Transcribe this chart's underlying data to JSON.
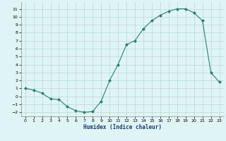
{
  "x": [
    0,
    1,
    2,
    3,
    4,
    5,
    6,
    7,
    8,
    9,
    10,
    11,
    12,
    13,
    14,
    15,
    16,
    17,
    18,
    19,
    20,
    21,
    22,
    23
  ],
  "y": [
    1,
    0.8,
    0.4,
    -0.3,
    -0.4,
    -1.3,
    -1.8,
    -2.0,
    -1.9,
    -0.6,
    2.0,
    4.0,
    6.5,
    7.0,
    8.5,
    9.5,
    10.2,
    10.7,
    11.0,
    11.0,
    10.5,
    9.5,
    3.0,
    1.8
  ],
  "xlabel": "Humidex (Indice chaleur)",
  "line_color": "#2e7d6e",
  "marker": "D",
  "marker_size": 2.0,
  "bg_color": "#dff5f5",
  "grid_color": "#b8d8d8",
  "xlim": [
    -0.5,
    23.5
  ],
  "ylim": [
    -2.5,
    11.8
  ],
  "xticks": [
    0,
    1,
    2,
    3,
    4,
    5,
    6,
    7,
    8,
    9,
    10,
    11,
    12,
    13,
    14,
    15,
    16,
    17,
    18,
    19,
    20,
    21,
    22,
    23
  ],
  "yticks": [
    -2,
    -1,
    0,
    1,
    2,
    3,
    4,
    5,
    6,
    7,
    8,
    9,
    10,
    11
  ]
}
